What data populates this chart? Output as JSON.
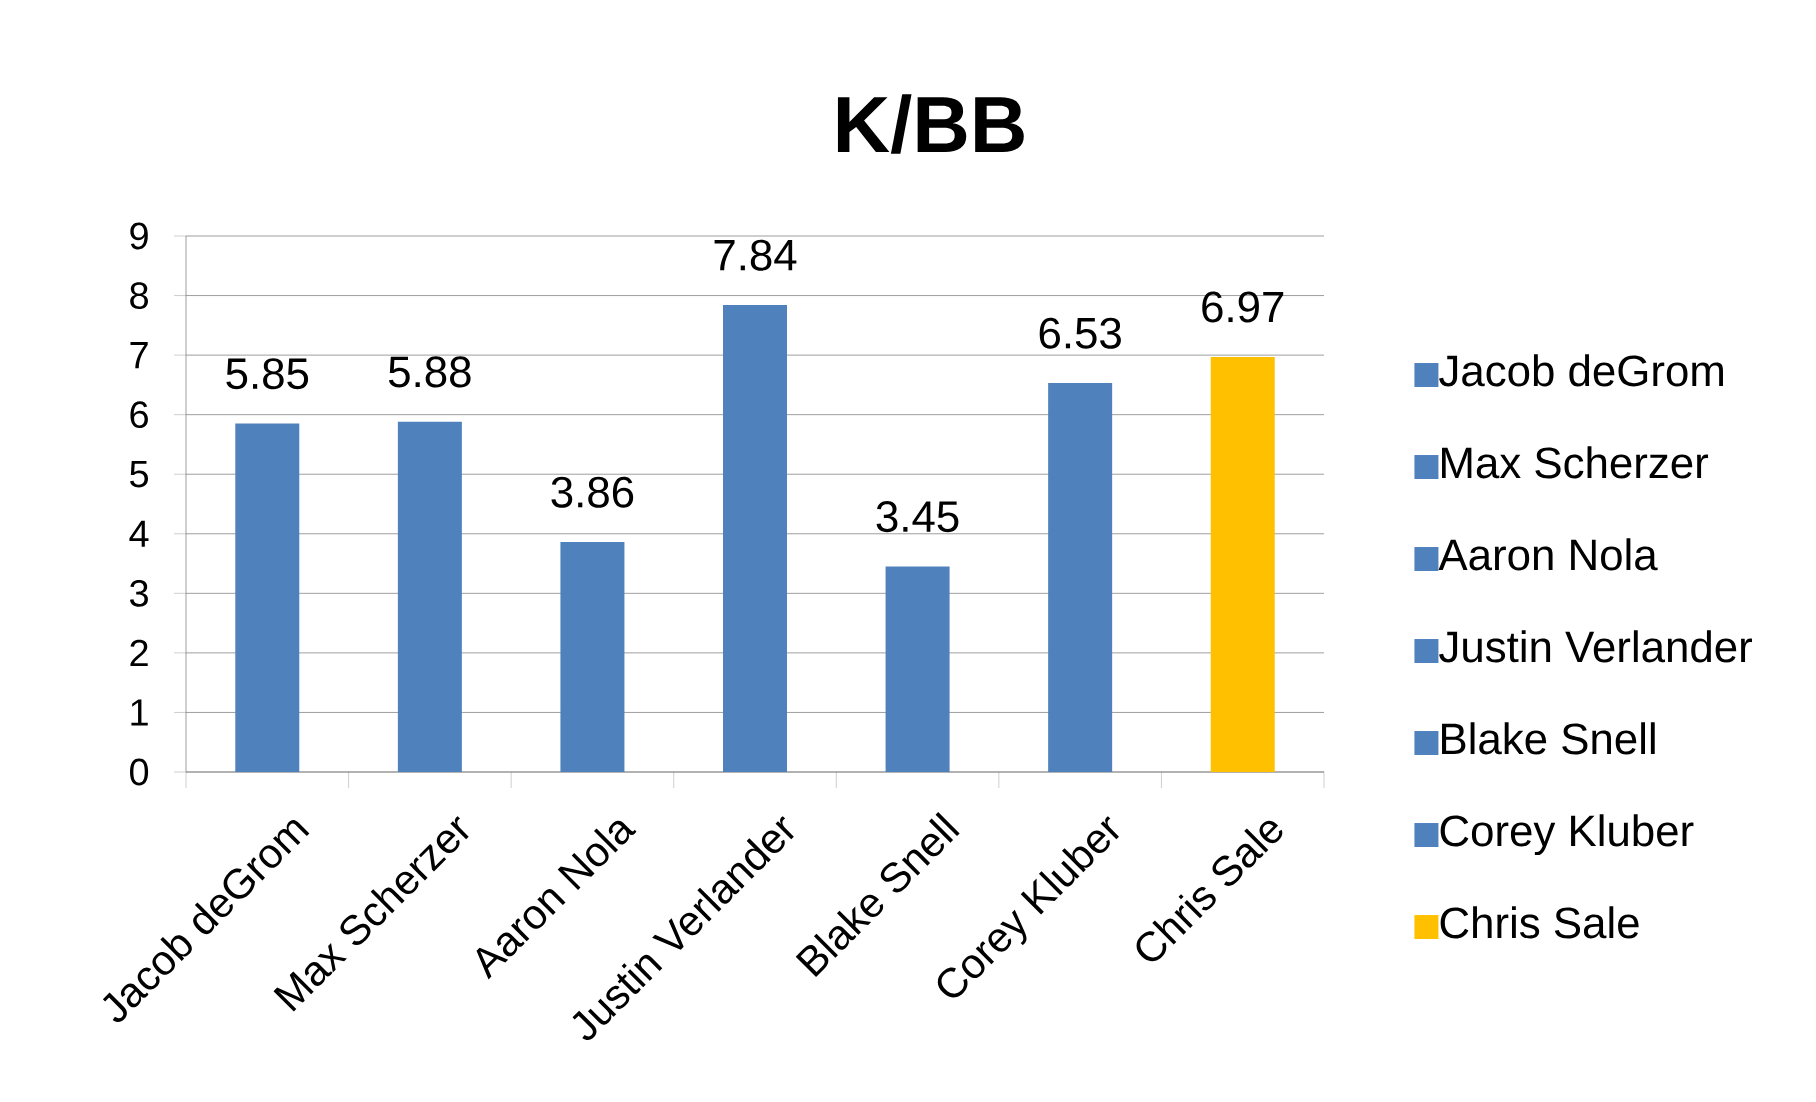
{
  "chart_data": {
    "type": "bar",
    "title": "K/BB",
    "categories": [
      "Jacob deGrom",
      "Max Scherzer",
      "Aaron Nola",
      "Justin Verlander",
      "Blake Snell",
      "Corey Kluber",
      "Chris Sale"
    ],
    "series": [
      {
        "name": "Jacob deGrom",
        "color": "#4f81bd",
        "values": [
          5.85,
          null,
          null,
          null,
          null,
          null,
          null
        ]
      },
      {
        "name": "Max Scherzer",
        "color": "#4f81bd",
        "values": [
          null,
          5.88,
          null,
          null,
          null,
          null,
          null
        ]
      },
      {
        "name": "Aaron Nola",
        "color": "#4f81bd",
        "values": [
          null,
          null,
          3.86,
          null,
          null,
          null,
          null
        ]
      },
      {
        "name": "Justin Verlander",
        "color": "#4f81bd",
        "values": [
          null,
          null,
          null,
          7.84,
          null,
          null,
          null
        ]
      },
      {
        "name": "Blake Snell",
        "color": "#4f81bd",
        "values": [
          null,
          null,
          null,
          null,
          3.45,
          null,
          null
        ]
      },
      {
        "name": "Corey Kluber",
        "color": "#4f81bd",
        "values": [
          null,
          null,
          null,
          null,
          null,
          6.53,
          null
        ]
      },
      {
        "name": "Chris Sale",
        "color": "#ffc000",
        "values": [
          null,
          null,
          null,
          null,
          null,
          null,
          6.97
        ]
      }
    ],
    "stacked": true,
    "ylim": [
      0,
      9
    ],
    "yticks": [
      0,
      1,
      2,
      3,
      4,
      5,
      6,
      7,
      8,
      9
    ],
    "grid": "y",
    "data_labels": true,
    "legend": "right"
  }
}
